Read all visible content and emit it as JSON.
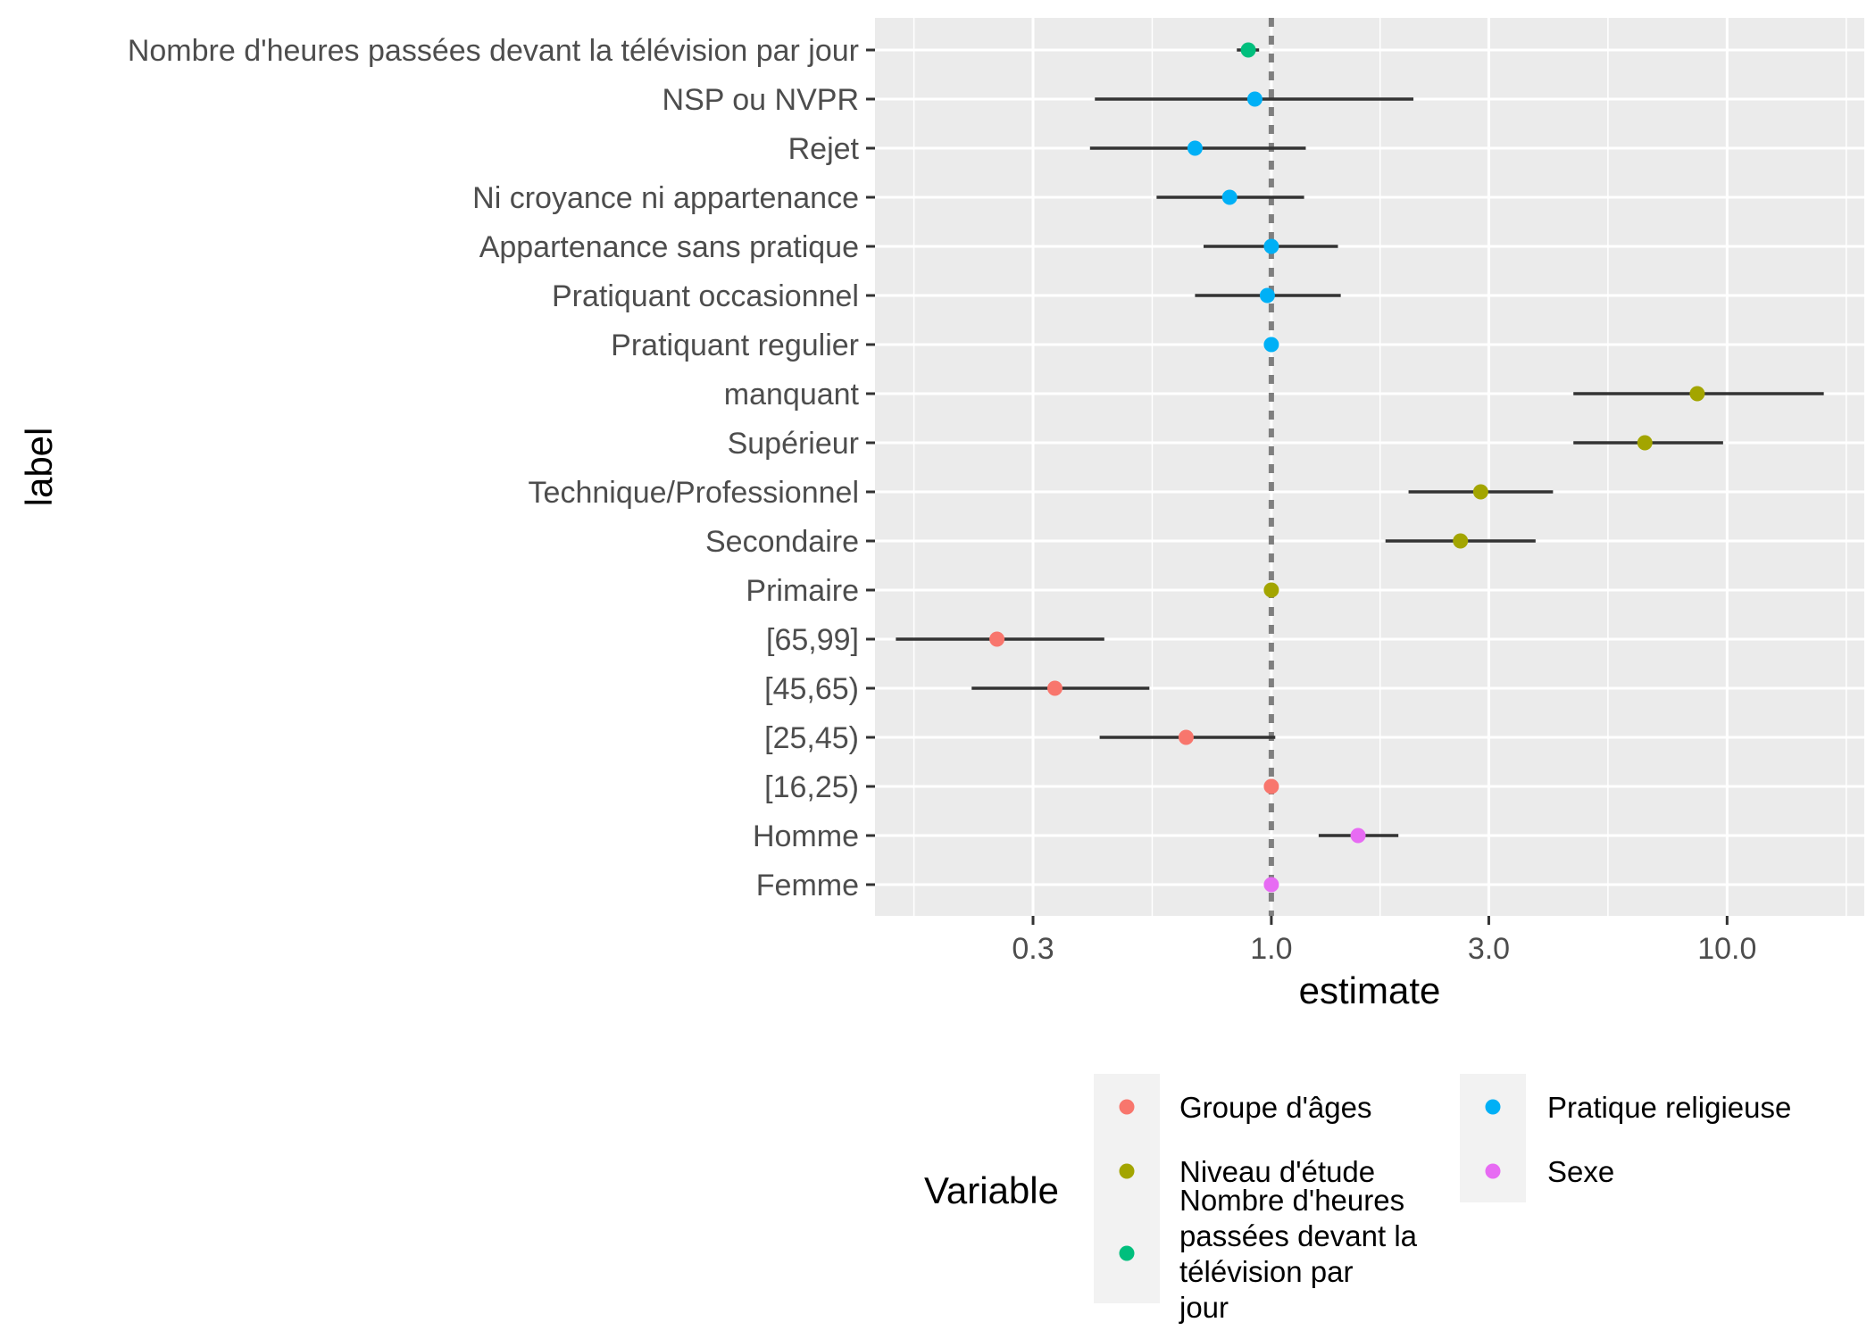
{
  "chart_data": {
    "type": "scatter",
    "xlabel": "estimate",
    "ylabel": "label",
    "x_scale": "log10",
    "xlim": [
      0.135,
      20
    ],
    "x_ticks": [
      0.3,
      1.0,
      3.0,
      10.0
    ],
    "x_tick_labels": [
      "0.3",
      "1.0",
      "3.0",
      "10.0"
    ],
    "reference_line": 1.0,
    "grid": true,
    "legend_title": "Variable",
    "legend_position": "bottom",
    "groups": [
      {
        "name": "Groupe d'âges",
        "color": "#F8766D"
      },
      {
        "name": "Niveau d'étude",
        "color": "#A3A500"
      },
      {
        "name": "Nombre d'heures passées devant la télévision par jour",
        "color": "#00BF7D"
      },
      {
        "name": "Pratique religieuse",
        "color": "#00B0F6"
      },
      {
        "name": "Sexe",
        "color": "#E76BF3"
      }
    ],
    "points": [
      {
        "label": "Nombre d'heures passées devant la télévision par jour",
        "group": 2,
        "estimate": 0.89,
        "low": 0.84,
        "high": 0.94
      },
      {
        "label": "NSP ou NVPR",
        "group": 3,
        "estimate": 0.92,
        "low": 0.41,
        "high": 2.05
      },
      {
        "label": "Rejet",
        "group": 3,
        "estimate": 0.68,
        "low": 0.4,
        "high": 1.19
      },
      {
        "label": "Ni croyance ni appartenance",
        "group": 3,
        "estimate": 0.81,
        "low": 0.56,
        "high": 1.18
      },
      {
        "label": "Appartenance sans pratique",
        "group": 3,
        "estimate": 1.0,
        "low": 0.71,
        "high": 1.4
      },
      {
        "label": "Pratiquant occasionnel",
        "group": 3,
        "estimate": 0.98,
        "low": 0.68,
        "high": 1.42
      },
      {
        "label": "Pratiquant regulier",
        "group": 3,
        "estimate": 1.0,
        "low": null,
        "high": null
      },
      {
        "label": "manquant",
        "group": 1,
        "estimate": 8.6,
        "low": 4.6,
        "high": 16.3
      },
      {
        "label": "Supérieur",
        "group": 1,
        "estimate": 6.6,
        "low": 4.6,
        "high": 9.8
      },
      {
        "label": "Technique/Professionnel",
        "group": 1,
        "estimate": 2.88,
        "low": 2.0,
        "high": 4.15
      },
      {
        "label": "Secondaire",
        "group": 1,
        "estimate": 2.6,
        "low": 1.78,
        "high": 3.8
      },
      {
        "label": "Primaire",
        "group": 1,
        "estimate": 1.0,
        "low": null,
        "high": null
      },
      {
        "label": "[65,99]",
        "group": 0,
        "estimate": 0.25,
        "low": 0.15,
        "high": 0.43
      },
      {
        "label": "[45,65)",
        "group": 0,
        "estimate": 0.335,
        "low": 0.22,
        "high": 0.54
      },
      {
        "label": "[25,45)",
        "group": 0,
        "estimate": 0.65,
        "low": 0.42,
        "high": 1.02
      },
      {
        "label": "[16,25)",
        "group": 0,
        "estimate": 1.0,
        "low": null,
        "high": null
      },
      {
        "label": "Homme",
        "group": 4,
        "estimate": 1.55,
        "low": 1.27,
        "high": 1.9
      },
      {
        "label": "Femme",
        "group": 4,
        "estimate": 1.0,
        "low": null,
        "high": null
      }
    ]
  }
}
